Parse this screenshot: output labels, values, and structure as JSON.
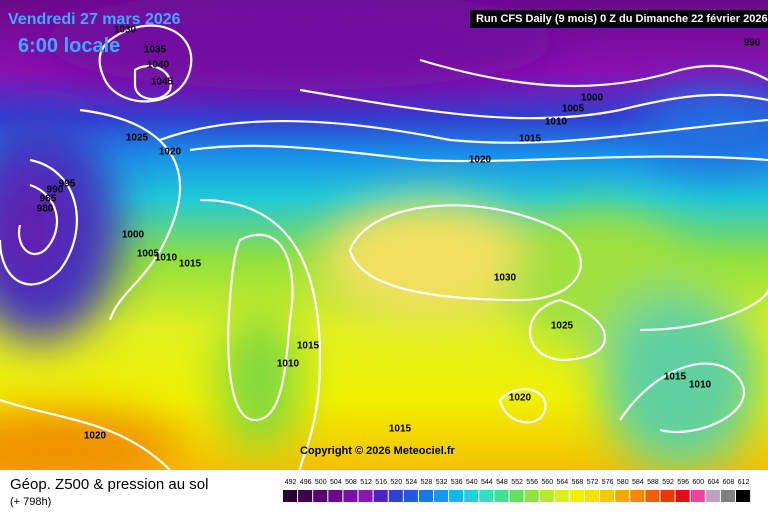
{
  "header": {
    "date": "Vendredi 27 mars 2026",
    "time": "6:00 locale",
    "run": "Run CFS Daily (9 mois) 0 Z du Dimanche 22 février 2026"
  },
  "isobar_labels": [
    "1030",
    "1035",
    "1040",
    "1045",
    "1025",
    "1020",
    "995",
    "990",
    "985",
    "980",
    "1000",
    "1005",
    "1010",
    "1015",
    "990",
    "1000",
    "1005",
    "1010",
    "1015",
    "1020",
    "1030",
    "1025",
    "1015",
    "1010",
    "1015",
    "1010",
    "1020",
    "1015",
    "1020"
  ],
  "copyright": "Copyright © 2026 Meteociel.fr",
  "footer": {
    "title": "Géop. Z500 & pression au sol",
    "lead": "(+ 798h)"
  },
  "scale": {
    "labels": [
      492,
      496,
      500,
      504,
      508,
      512,
      516,
      520,
      524,
      528,
      532,
      536,
      540,
      544,
      548,
      552,
      556,
      560,
      564,
      568,
      572,
      576,
      580,
      584,
      588,
      592,
      596,
      600,
      604,
      608,
      612
    ]
  }
}
